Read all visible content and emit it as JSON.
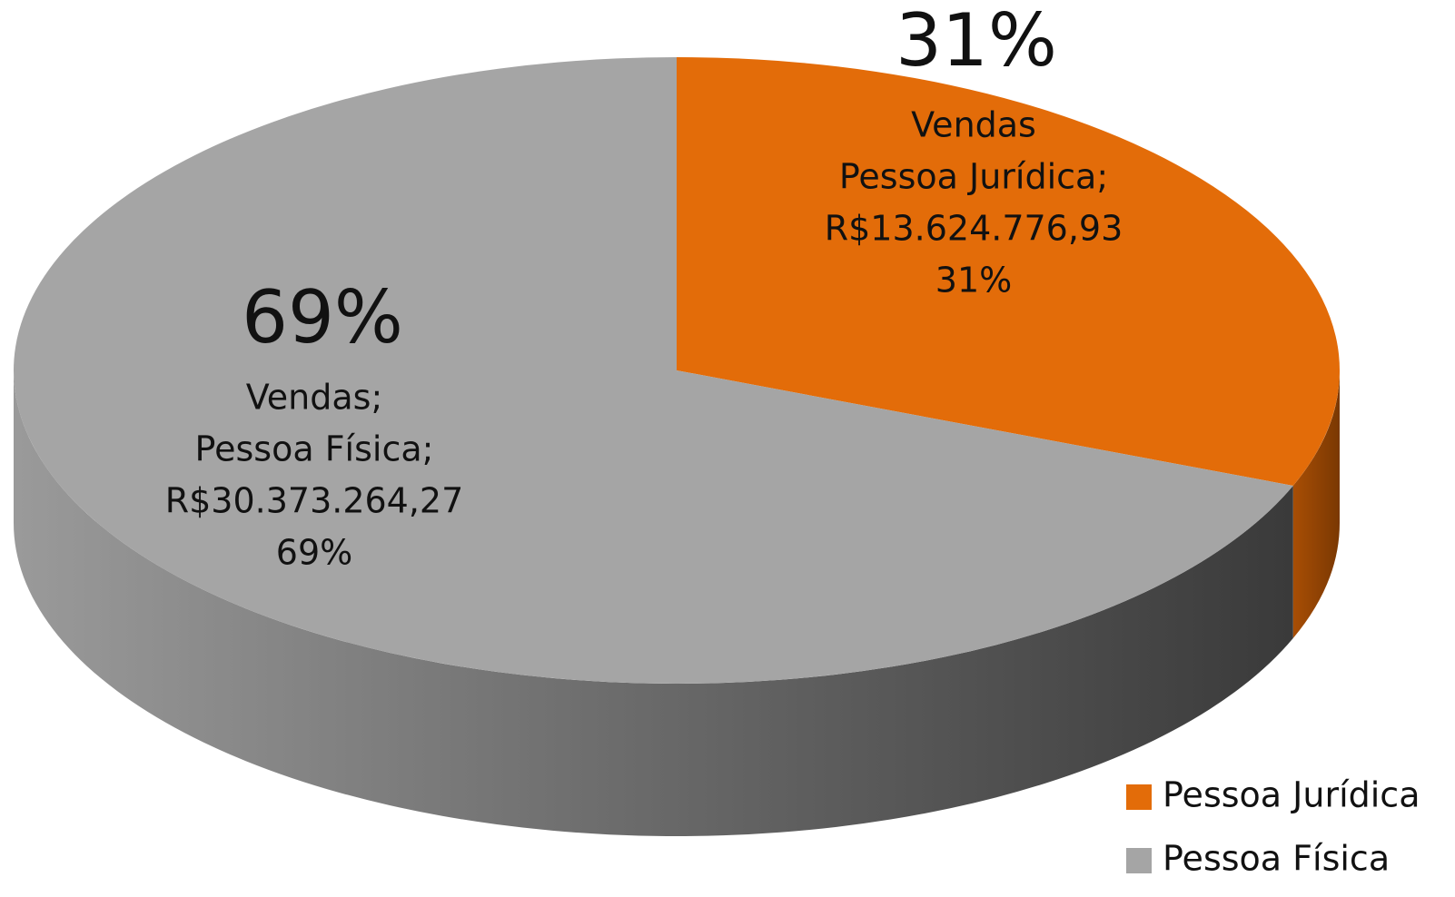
{
  "chart_data": {
    "type": "pie3d",
    "categories": [
      "Pessoa Jurídica",
      "Pessoa Física"
    ],
    "values": [
      31,
      69
    ],
    "value_labels": [
      "31%",
      "69%"
    ],
    "data_labels": [
      [
        "Vendas",
        "Pessoa Jurídica;",
        "R$13.624.776,93"
      ],
      [
        "Vendas;",
        "Pessoa Física;",
        "R$30.373.264,27"
      ]
    ],
    "colors": [
      "#e36c09",
      "#a5a5a5"
    ],
    "legend": "bottom-right"
  }
}
